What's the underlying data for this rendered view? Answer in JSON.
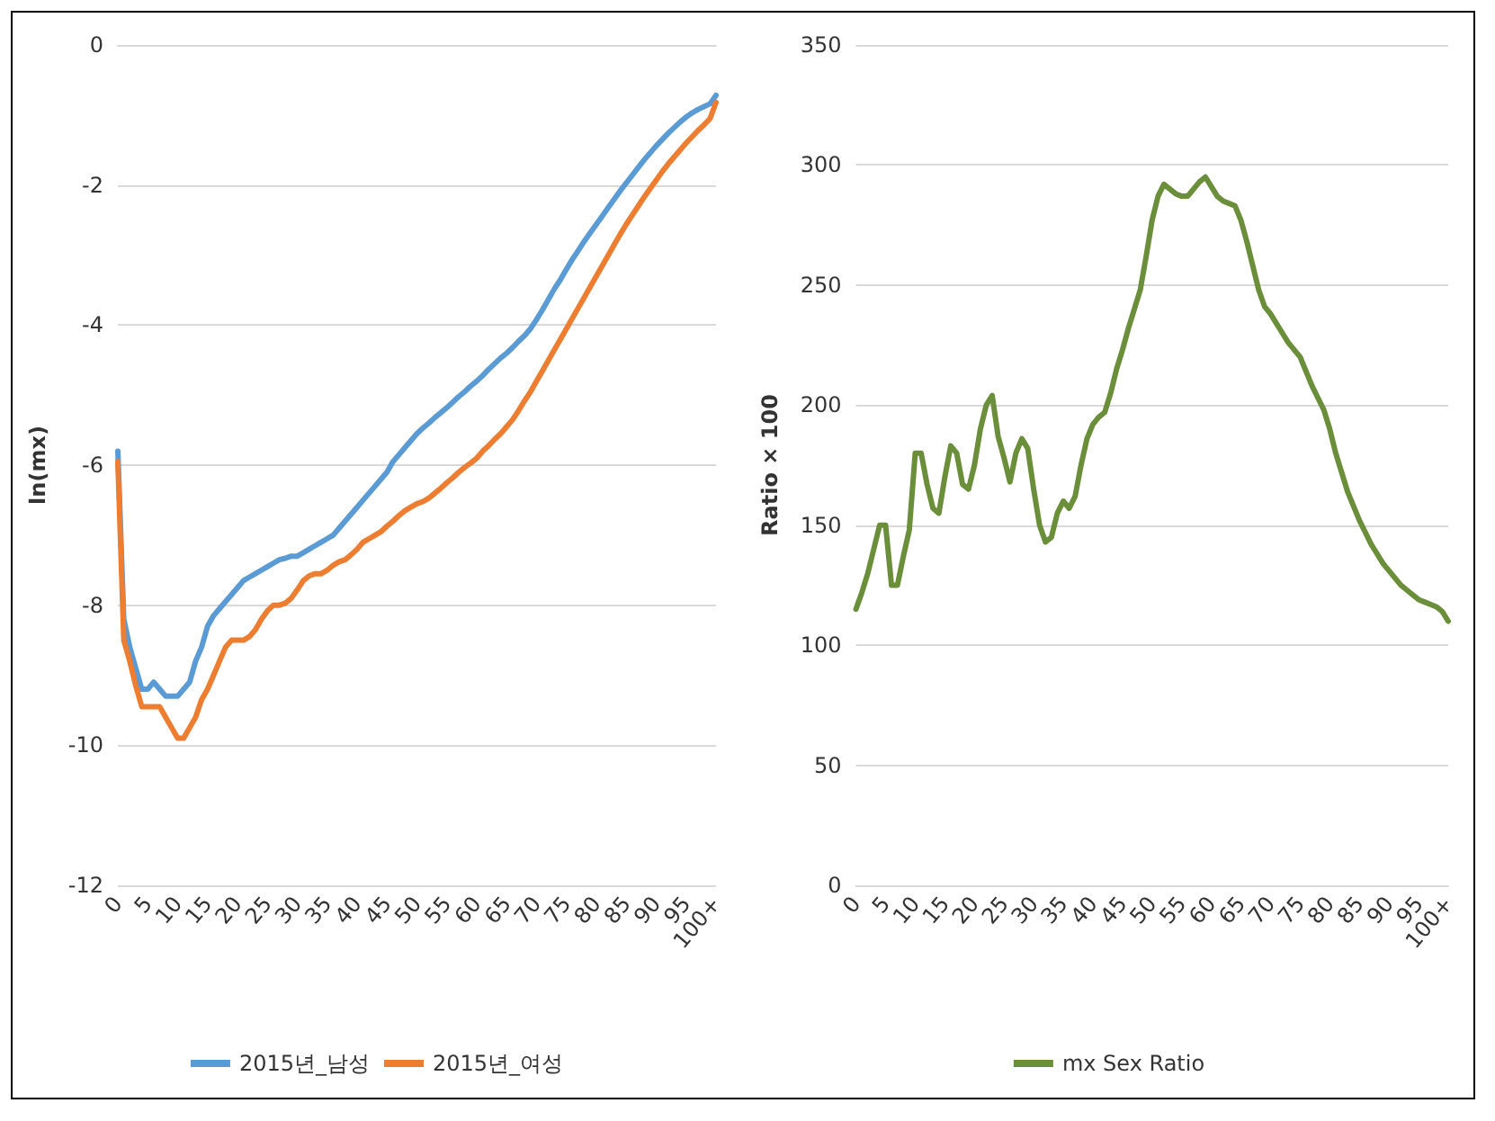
{
  "chart_data": [
    {
      "type": "line",
      "ylabel": "ln(mx)",
      "categories": [
        "0",
        null,
        null,
        null,
        null,
        "5",
        null,
        null,
        null,
        null,
        "10",
        null,
        null,
        null,
        null,
        "15",
        null,
        null,
        null,
        null,
        "20",
        null,
        null,
        null,
        null,
        "25",
        null,
        null,
        null,
        null,
        "30",
        null,
        null,
        null,
        null,
        "35",
        null,
        null,
        null,
        null,
        "40",
        null,
        null,
        null,
        null,
        "45",
        null,
        null,
        null,
        null,
        "50",
        null,
        null,
        null,
        null,
        "55",
        null,
        null,
        null,
        null,
        "60",
        null,
        null,
        null,
        null,
        "65",
        null,
        null,
        null,
        null,
        "70",
        null,
        null,
        null,
        null,
        "75",
        null,
        null,
        null,
        null,
        "80",
        null,
        null,
        null,
        null,
        "85",
        null,
        null,
        null,
        null,
        "90",
        null,
        null,
        null,
        null,
        "95",
        null,
        null,
        null,
        null,
        "100+"
      ],
      "series": [
        {
          "name": "2015년_남성",
          "color": "#5b9bd5",
          "values": [
            -5.8,
            -8.2,
            -8.6,
            -8.9,
            -9.2,
            -9.2,
            -9.1,
            -9.2,
            -9.3,
            -9.3,
            -9.3,
            -9.2,
            -9.1,
            -8.8,
            -8.6,
            -8.3,
            -8.15,
            -8.05,
            -7.95,
            -7.85,
            -7.75,
            -7.65,
            -7.6,
            -7.55,
            -7.5,
            -7.45,
            -7.4,
            -7.35,
            -7.33,
            -7.3,
            -7.3,
            -7.25,
            -7.2,
            -7.15,
            -7.1,
            -7.05,
            -7.0,
            -6.9,
            -6.8,
            -6.7,
            -6.6,
            -6.5,
            -6.4,
            -6.3,
            -6.2,
            -6.1,
            -5.95,
            -5.85,
            -5.75,
            -5.65,
            -5.55,
            -5.47,
            -5.4,
            -5.32,
            -5.25,
            -5.18,
            -5.1,
            -5.02,
            -4.95,
            -4.87,
            -4.8,
            -4.72,
            -4.63,
            -4.55,
            -4.47,
            -4.4,
            -4.32,
            -4.23,
            -4.15,
            -4.05,
            -3.92,
            -3.78,
            -3.63,
            -3.48,
            -3.35,
            -3.2,
            -3.06,
            -2.93,
            -2.8,
            -2.68,
            -2.56,
            -2.44,
            -2.32,
            -2.2,
            -2.08,
            -1.97,
            -1.86,
            -1.75,
            -1.64,
            -1.54,
            -1.44,
            -1.35,
            -1.26,
            -1.18,
            -1.1,
            -1.03,
            -0.97,
            -0.92,
            -0.88,
            -0.84,
            -0.72
          ]
        },
        {
          "name": "2015년_여성",
          "color": "#ed7d31",
          "values": [
            -5.95,
            -8.5,
            -8.8,
            -9.15,
            -9.45,
            -9.45,
            -9.45,
            -9.45,
            -9.6,
            -9.75,
            -9.9,
            -9.9,
            -9.75,
            -9.6,
            -9.35,
            -9.2,
            -9.0,
            -8.8,
            -8.6,
            -8.5,
            -8.5,
            -8.5,
            -8.45,
            -8.35,
            -8.2,
            -8.08,
            -8.0,
            -8.0,
            -7.97,
            -7.9,
            -7.78,
            -7.65,
            -7.58,
            -7.55,
            -7.55,
            -7.5,
            -7.43,
            -7.38,
            -7.35,
            -7.28,
            -7.2,
            -7.1,
            -7.05,
            -7.0,
            -6.95,
            -6.87,
            -6.8,
            -6.72,
            -6.65,
            -6.6,
            -6.55,
            -6.52,
            -6.47,
            -6.4,
            -6.33,
            -6.25,
            -6.18,
            -6.1,
            -6.03,
            -5.97,
            -5.9,
            -5.8,
            -5.72,
            -5.63,
            -5.55,
            -5.45,
            -5.35,
            -5.22,
            -5.08,
            -4.95,
            -4.8,
            -4.65,
            -4.5,
            -4.35,
            -4.2,
            -4.05,
            -3.9,
            -3.75,
            -3.6,
            -3.45,
            -3.3,
            -3.15,
            -3.0,
            -2.85,
            -2.7,
            -2.56,
            -2.43,
            -2.3,
            -2.17,
            -2.05,
            -1.93,
            -1.81,
            -1.7,
            -1.6,
            -1.5,
            -1.4,
            -1.31,
            -1.22,
            -1.14,
            -1.05,
            -0.82
          ]
        }
      ],
      "ylim": [
        -12,
        0
      ],
      "yticks": [
        -12,
        -10,
        -8,
        -6,
        -4,
        -2,
        0
      ],
      "grid": "y",
      "legend": "bottom",
      "marker": "none",
      "line_style": "solid"
    },
    {
      "type": "line",
      "ylabel": "Ratio × 100",
      "categories": [
        "0",
        null,
        null,
        null,
        null,
        "5",
        null,
        null,
        null,
        null,
        "10",
        null,
        null,
        null,
        null,
        "15",
        null,
        null,
        null,
        null,
        "20",
        null,
        null,
        null,
        null,
        "25",
        null,
        null,
        null,
        null,
        "30",
        null,
        null,
        null,
        null,
        "35",
        null,
        null,
        null,
        null,
        "40",
        null,
        null,
        null,
        null,
        "45",
        null,
        null,
        null,
        null,
        "50",
        null,
        null,
        null,
        null,
        "55",
        null,
        null,
        null,
        null,
        "60",
        null,
        null,
        null,
        null,
        "65",
        null,
        null,
        null,
        null,
        "70",
        null,
        null,
        null,
        null,
        "75",
        null,
        null,
        null,
        null,
        "80",
        null,
        null,
        null,
        null,
        "85",
        null,
        null,
        null,
        null,
        "90",
        null,
        null,
        null,
        null,
        "95",
        null,
        null,
        null,
        null,
        "100+"
      ],
      "series": [
        {
          "name": "mx Sex Ratio",
          "color": "#6b8e3a",
          "values": [
            115,
            122,
            130,
            140,
            150,
            150,
            125,
            125,
            137,
            148,
            180,
            180,
            167,
            157,
            155,
            170,
            183,
            180,
            167,
            165,
            175,
            190,
            200,
            204,
            187,
            178,
            168,
            180,
            186,
            182,
            165,
            150,
            143,
            145,
            155,
            160,
            157,
            162,
            175,
            186,
            192,
            195,
            197,
            205,
            215,
            223,
            232,
            240,
            248,
            262,
            277,
            287,
            292,
            290,
            288,
            287,
            287,
            290,
            293,
            295,
            291,
            287,
            285,
            284,
            283,
            277,
            268,
            258,
            248,
            241,
            238,
            234,
            230,
            226,
            223,
            220,
            214,
            208,
            203,
            198,
            190,
            180,
            172,
            164,
            158,
            152,
            147,
            142,
            138,
            134,
            131,
            128,
            125,
            123,
            121,
            119,
            118,
            117,
            116,
            114,
            110
          ]
        }
      ],
      "ylim": [
        0,
        350
      ],
      "yticks": [
        0,
        50,
        100,
        150,
        200,
        250,
        300,
        350
      ],
      "grid": "y",
      "legend": "bottom",
      "marker": "none",
      "line_style": "solid"
    }
  ]
}
